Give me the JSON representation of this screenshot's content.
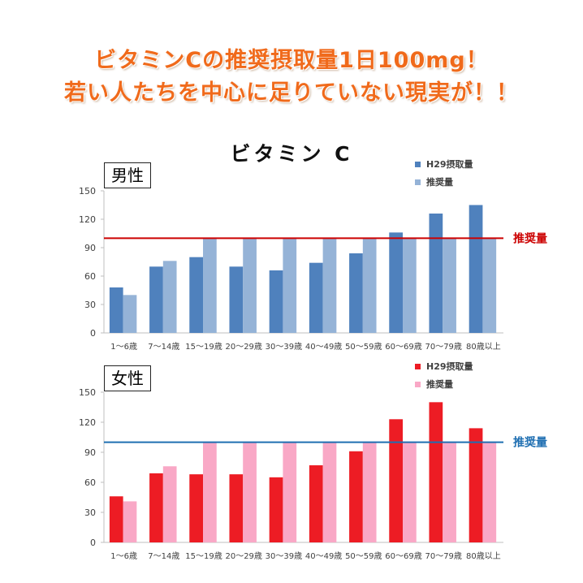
{
  "headline": {
    "line1": "ビタミンCの推奨摂取量1日100mg！",
    "line2": "若い人たちを中心に足りていない現実が！！"
  },
  "chart_title": "ビタミン C",
  "colors": {
    "headline": "#f06a1b",
    "male_intake": "#4f81bd",
    "male_recommended": "#95b3d7",
    "male_line": "#cc0000",
    "male_line_label": "#cc0000",
    "female_intake": "#ed1c24",
    "female_recommended": "#f9a8c6",
    "female_line": "#1f6fb2",
    "female_line_label": "#1f6fb2"
  },
  "chart_data": [
    {
      "type": "bar",
      "gender_label": "男性",
      "categories": [
        "1～6歳",
        "7～14歳",
        "15～19歳",
        "20～29歳",
        "30～39歳",
        "40～49歳",
        "50～59歳",
        "60～69歳",
        "70～79歳",
        "80歳以上"
      ],
      "series": [
        {
          "name": "H29摂取量",
          "values": [
            48,
            70,
            80,
            70,
            66,
            74,
            84,
            106,
            126,
            135
          ]
        },
        {
          "name": "推奨量",
          "values": [
            40,
            76,
            100,
            100,
            100,
            100,
            100,
            100,
            100,
            100
          ]
        }
      ],
      "ylim": [
        0,
        150
      ],
      "yticks": [
        0,
        30,
        60,
        90,
        120,
        150
      ],
      "reference_line": {
        "value": 100,
        "label": "推奨量"
      },
      "legend": "top-right"
    },
    {
      "type": "bar",
      "gender_label": "女性",
      "categories": [
        "1～6歳",
        "7～14歳",
        "15～19歳",
        "20～29歳",
        "30～39歳",
        "40～49歳",
        "50～59歳",
        "60～69歳",
        "70～79歳",
        "80歳以上"
      ],
      "series": [
        {
          "name": "H29摂取量",
          "values": [
            46,
            69,
            68,
            68,
            65,
            77,
            91,
            123,
            140,
            114
          ]
        },
        {
          "name": "推奨量",
          "values": [
            41,
            76,
            100,
            100,
            100,
            100,
            100,
            100,
            100,
            100
          ]
        }
      ],
      "ylim": [
        0,
        150
      ],
      "yticks": [
        0,
        30,
        60,
        90,
        120,
        150
      ],
      "reference_line": {
        "value": 100,
        "label": "推奨量"
      },
      "legend": "top-right"
    }
  ]
}
